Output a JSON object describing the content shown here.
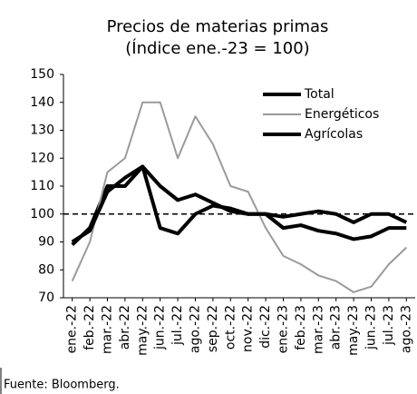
{
  "chart_data": {
    "type": "line",
    "title": "Precios de materias primas",
    "subtitle": "(Índice ene.-23 = 100)",
    "source": "Fuente: Bloomberg.",
    "categories": [
      "ene.-22",
      "feb.-22",
      "mar.-22",
      "abr.-22",
      "may.-22",
      "jun.-22",
      "jul.-22",
      "ago.-22",
      "sep.-22",
      "oct.-22",
      "nov.-22",
      "dic.-22",
      "ene.-23",
      "feb.-23",
      "mar.-23",
      "abr.-23",
      "may.-23",
      "jun.-23",
      "jul.-23",
      "ago.-23"
    ],
    "series": [
      {
        "name": "Total",
        "color": "#000000",
        "values": [
          89,
          95,
          110,
          110,
          117,
          110,
          105,
          107,
          104,
          101,
          100,
          100,
          95,
          96,
          94,
          93,
          91,
          92,
          95,
          95
        ]
      },
      {
        "name": "Energéticos",
        "color": "#9a9a9a",
        "values": [
          76,
          90,
          115,
          120,
          140,
          140,
          120,
          135,
          125,
          110,
          108,
          95,
          85,
          82,
          78,
          76,
          72,
          74,
          82,
          88
        ]
      },
      {
        "name": "Agrícolas",
        "color": "#000000",
        "values": [
          90,
          94,
          108,
          113,
          117,
          95,
          93,
          100,
          103,
          102,
          100,
          100,
          99,
          100,
          101,
          100,
          97,
          100,
          100,
          97
        ]
      }
    ],
    "ylim": [
      70,
      150
    ],
    "yticks": [
      70,
      80,
      90,
      100,
      110,
      120,
      130,
      140,
      150
    ],
    "reference_line": 100,
    "legend": "upper right"
  }
}
